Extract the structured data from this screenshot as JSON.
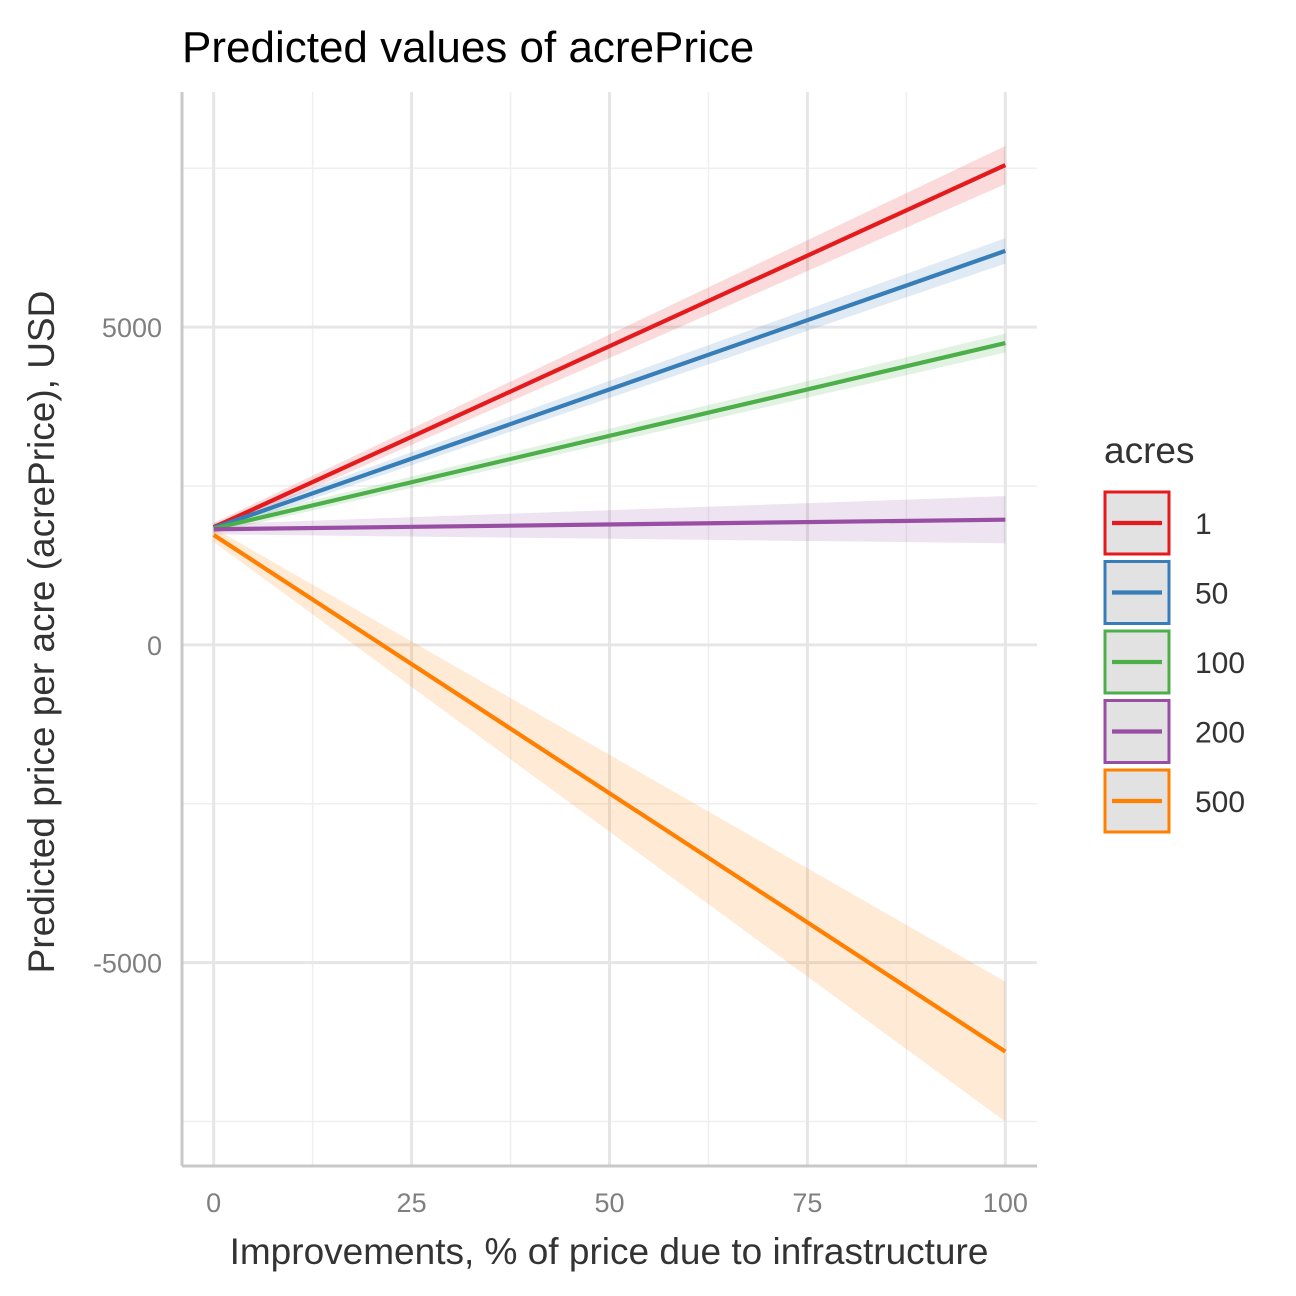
{
  "chart_data": {
    "type": "line",
    "title": "Predicted values of acrePrice",
    "xlabel": "Improvements, % of price due to infrastructure",
    "ylabel": "Predicted price per acre (acrePrice), USD",
    "xlim": [
      -4,
      104
    ],
    "ylim": [
      -8200,
      8700
    ],
    "x_ticks": [
      0,
      25,
      50,
      75,
      100
    ],
    "y_ticks": [
      -5000,
      0,
      5000
    ],
    "grid": true,
    "legend": {
      "title": "acres",
      "position": "right"
    },
    "x": [
      0,
      100
    ],
    "series": [
      {
        "name": "1",
        "color": "#e41a1c",
        "values": [
          1850,
          7550
        ],
        "ci_low": [
          1780,
          7250
        ],
        "ci_high": [
          1920,
          7850
        ]
      },
      {
        "name": "50",
        "color": "#377eb8",
        "values": [
          1840,
          6200
        ],
        "ci_low": [
          1770,
          6000
        ],
        "ci_high": [
          1910,
          6400
        ]
      },
      {
        "name": "100",
        "color": "#4daf4a",
        "values": [
          1830,
          4750
        ],
        "ci_low": [
          1760,
          4600
        ],
        "ci_high": [
          1900,
          4900
        ]
      },
      {
        "name": "200",
        "color": "#984ea3",
        "values": [
          1820,
          1970
        ],
        "ci_low": [
          1740,
          1600
        ],
        "ci_high": [
          1900,
          2340
        ]
      },
      {
        "name": "500",
        "color": "#ff7f00",
        "values": [
          1730,
          -6400
        ],
        "ci_low": [
          1620,
          -7500
        ],
        "ci_high": [
          1840,
          -5300
        ]
      }
    ]
  }
}
